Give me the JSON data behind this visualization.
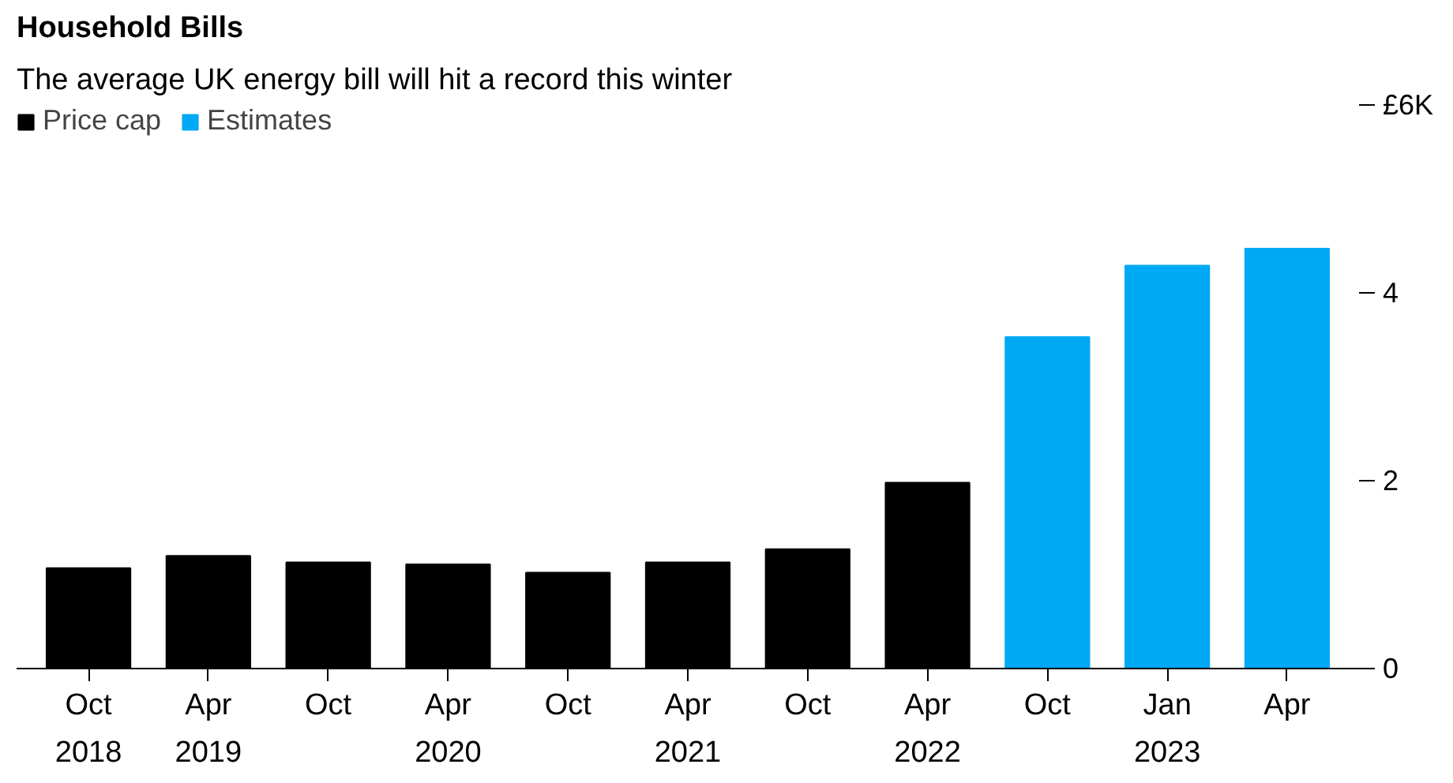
{
  "chart_data": {
    "type": "bar",
    "title": "Household Bills",
    "subtitle": "The average UK energy bill will hit a record this winter",
    "categories": [
      "Oct\n2018",
      "Apr\n2019",
      "Oct",
      "Apr\n2020",
      "Oct",
      "Apr\n2021",
      "Oct",
      "Apr\n2022",
      "Oct",
      "Jan\n2023",
      "Apr"
    ],
    "series": [
      {
        "name": "Price cap",
        "color": "#000000",
        "values": [
          1.07,
          1.2,
          1.13,
          1.11,
          1.02,
          1.13,
          1.27,
          1.98,
          null,
          null,
          null
        ]
      },
      {
        "name": "Estimates",
        "color": "#00a9f4",
        "values": [
          null,
          null,
          null,
          null,
          null,
          null,
          null,
          null,
          3.53,
          4.29,
          4.47
        ]
      }
    ],
    "ylim": [
      0,
      6
    ],
    "yticks": [
      0,
      2,
      4,
      {
        "value": 6,
        "label": "£6K"
      }
    ],
    "grid": false,
    "legend": "top left"
  }
}
